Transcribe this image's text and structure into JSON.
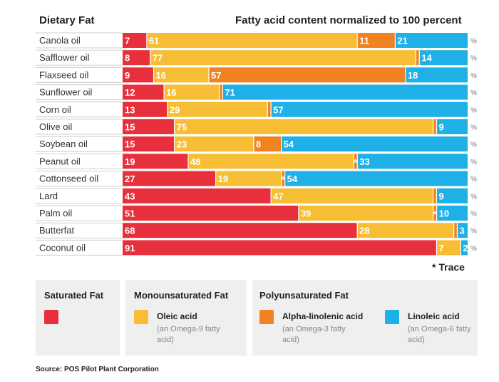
{
  "header": {
    "left_title": "Dietary Fat",
    "right_title": "Fatty acid content normalized to 100 percent"
  },
  "trace_note": "* Trace",
  "source": "Source: POS Pilot Plant Corporation",
  "colors": {
    "saturated": "#e8303c",
    "oleic": "#f7be35",
    "alpha_linolenic": "#f08221",
    "linoleic": "#1eb0e6"
  },
  "legend": {
    "saturated": {
      "title": "Saturated Fat"
    },
    "monounsaturated": {
      "title": "Monounsaturated Fat",
      "name": "Oleic acid",
      "sub": "(an Omega-9 fatty acid)"
    },
    "polyunsaturated": {
      "title": "Polyunsaturated Fat",
      "alpha": {
        "name": "Alpha-linolenic acid",
        "sub": "(an Omega-3 fatty acid)"
      },
      "linoleic": {
        "name": "Linoleic acid",
        "sub": "(an Omega-6 fatty acid)"
      }
    }
  },
  "chart_data": {
    "type": "bar",
    "stacked": true,
    "orientation": "horizontal",
    "title": "Fatty acid content normalized to 100 percent",
    "category_header": "Dietary Fat",
    "unit_suffix": "%",
    "trace_label": "*",
    "categories": [
      "Canola oil",
      "Safflower oil",
      "Flaxseed oil",
      "Sunflower oil",
      "Corn oil",
      "Olive oil",
      "Soybean oil",
      "Peanut oil",
      "Cottonseed oil",
      "Lard",
      "Palm oil",
      "Butterfat",
      "Coconut oil"
    ],
    "series": [
      {
        "name": "Saturated Fat",
        "values": [
          7,
          8,
          9,
          12,
          13,
          15,
          15,
          19,
          27,
          43,
          51,
          68,
          91
        ]
      },
      {
        "name": "Oleic acid",
        "values": [
          61,
          77,
          16,
          16,
          29,
          75,
          23,
          48,
          19,
          47,
          39,
          28,
          7
        ]
      },
      {
        "name": "Alpha-linolenic acid",
        "values": [
          11,
          1,
          57,
          1,
          1,
          1,
          8,
          "*",
          "*",
          1,
          "*",
          1,
          null
        ]
      },
      {
        "name": "Linoleic acid",
        "values": [
          21,
          14,
          18,
          71,
          57,
          9,
          54,
          33,
          54,
          9,
          10,
          3,
          2
        ]
      }
    ],
    "xlim": [
      0,
      100
    ],
    "legend_position": "bottom"
  }
}
